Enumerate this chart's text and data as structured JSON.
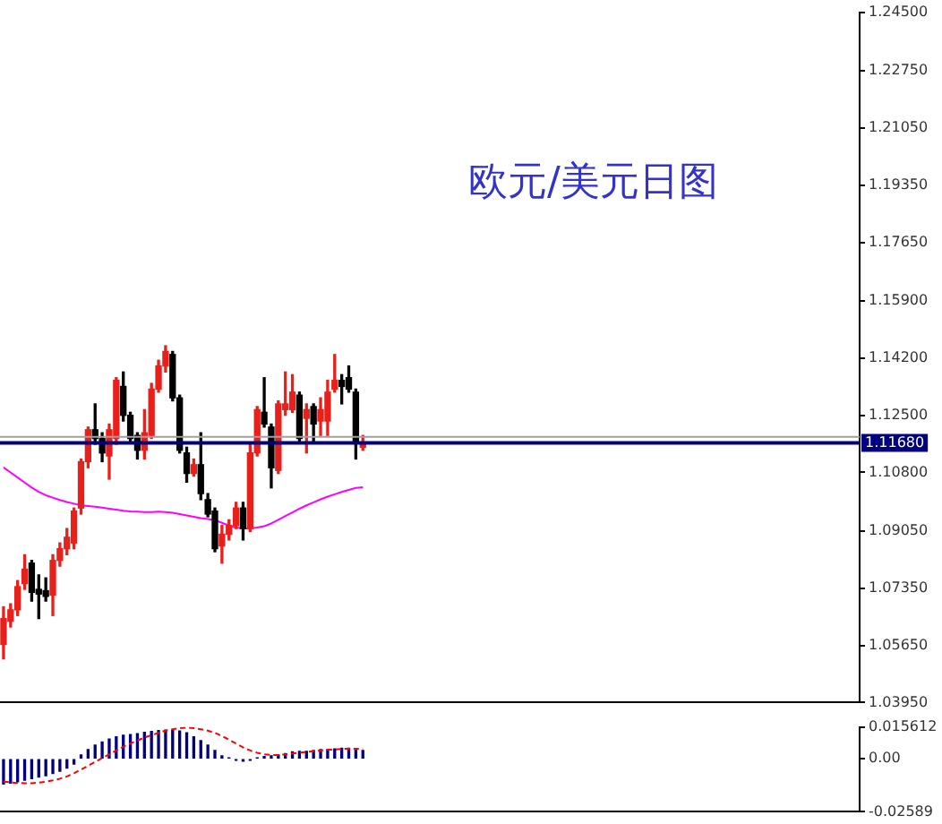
{
  "chart_data": [
    {
      "type": "candlestick",
      "title": "欧元/美元日图",
      "categories": [
        null,
        null,
        null,
        null,
        null,
        null,
        null,
        null,
        null,
        null,
        null,
        null,
        null,
        null,
        null,
        null,
        null,
        null,
        null,
        null,
        null,
        null,
        null,
        null,
        null,
        null,
        null,
        null,
        null,
        null,
        null,
        null,
        null,
        null,
        null,
        null,
        null,
        null,
        null,
        null,
        null,
        null,
        null,
        null,
        null,
        null,
        null,
        null,
        null,
        null,
        null,
        null,
        null,
        null,
        null,
        null,
        null,
        null,
        null,
        null,
        null,
        null,
        null,
        null,
        null,
        null,
        null,
        null,
        null,
        null,
        null,
        null,
        null,
        null,
        null,
        null,
        null,
        null,
        null,
        null,
        null,
        null,
        null,
        null,
        null,
        null,
        null,
        null,
        null,
        null,
        null,
        null,
        null,
        null,
        null,
        null,
        null,
        null,
        null,
        null,
        null,
        null,
        null,
        null,
        null,
        null,
        null,
        null,
        null,
        null,
        null,
        null,
        null,
        null,
        null,
        null,
        null,
        null,
        null,
        null,
        null,
        null
      ],
      "ohlc": [
        [
          1.0568,
          1.068,
          1.0525,
          1.0645
        ],
        [
          1.0637,
          1.0689,
          1.062,
          1.0671
        ],
        [
          1.0671,
          1.0758,
          1.0654,
          1.074
        ],
        [
          1.0749,
          1.0835,
          1.0732,
          1.0792
        ],
        [
          1.081,
          1.0818,
          1.0697,
          1.0723
        ],
        [
          1.0732,
          1.0775,
          1.0645,
          1.0718
        ],
        [
          1.0728,
          1.0766,
          1.0697,
          1.0711
        ],
        [
          1.0715,
          1.0835,
          1.0654,
          1.0818
        ],
        [
          1.0818,
          1.087,
          1.0801,
          1.0853
        ],
        [
          1.0853,
          1.0913,
          1.0835,
          1.0887
        ],
        [
          1.087,
          1.0974,
          1.0853,
          1.0965
        ],
        [
          1.0974,
          1.112,
          1.0956,
          1.1112
        ],
        [
          1.1112,
          1.1215,
          1.1094,
          1.1207
        ],
        [
          1.1207,
          1.1284,
          1.1164,
          1.1181
        ],
        [
          1.1181,
          1.1198,
          1.1112,
          1.1138
        ],
        [
          1.1129,
          1.1224,
          1.106,
          1.1207
        ],
        [
          1.1181,
          1.1362,
          1.1164,
          1.1354
        ],
        [
          1.1336,
          1.1379,
          1.1233,
          1.125
        ],
        [
          1.125,
          1.1259,
          1.1172,
          1.1181
        ],
        [
          1.119,
          1.1198,
          1.112,
          1.1146
        ],
        [
          1.1146,
          1.1267,
          1.112,
          1.1198
        ],
        [
          1.119,
          1.1345,
          1.1181,
          1.1328
        ],
        [
          1.1328,
          1.1414,
          1.1319,
          1.1397
        ],
        [
          1.1397,
          1.1457,
          1.1379,
          1.144
        ],
        [
          1.1431,
          1.144,
          1.1293,
          1.1302
        ],
        [
          1.1302,
          1.131,
          1.1138,
          1.1146
        ],
        [
          1.1138,
          1.1155,
          1.1051,
          1.1077
        ],
        [
          1.1077,
          1.112,
          1.1069,
          1.1103
        ],
        [
          1.1103,
          1.1198,
          1.0999,
          1.1017
        ],
        [
          1.0999,
          1.1017,
          1.0948,
          1.0956
        ],
        [
          1.0965,
          1.0974,
          1.0844,
          1.0853
        ],
        [
          1.0861,
          1.0922,
          1.081,
          1.0896
        ],
        [
          1.0896,
          1.0939,
          1.0879,
          1.0922
        ],
        [
          1.0922,
          1.0991,
          1.0913,
          1.0974
        ],
        [
          1.0974,
          1.0991,
          1.0879,
          1.0913
        ],
        [
          1.0913,
          1.1164,
          1.0904,
          1.1138
        ],
        [
          1.1138,
          1.1276,
          1.1129,
          1.1267
        ],
        [
          1.1259,
          1.1362,
          1.1215,
          1.1224
        ],
        [
          1.1215,
          1.1224,
          1.1034,
          1.1094
        ],
        [
          1.1086,
          1.1293,
          1.1077,
          1.1284
        ],
        [
          1.1267,
          1.1379,
          1.125,
          1.1284
        ],
        [
          1.1267,
          1.1371,
          1.1259,
          1.1319
        ],
        [
          1.131,
          1.1319,
          1.1172,
          1.1181
        ],
        [
          1.1241,
          1.1284,
          1.1138,
          1.1267
        ],
        [
          1.1276,
          1.1284,
          1.1172,
          1.1224
        ],
        [
          1.1233,
          1.1302,
          1.119,
          1.1267
        ],
        [
          1.1233,
          1.1354,
          1.119,
          1.1319
        ],
        [
          1.1328,
          1.1431,
          1.1319,
          1.1354
        ],
        [
          1.1354,
          1.1371,
          1.1284,
          1.1336
        ],
        [
          1.1362,
          1.1397,
          1.1319,
          1.1328
        ],
        [
          1.1319,
          1.1328,
          1.112,
          1.1172
        ],
        [
          1.1155,
          1.119,
          1.1146,
          1.1168
        ],
        null,
        null,
        null,
        null,
        null,
        null,
        null,
        null,
        null,
        null,
        null,
        null,
        null,
        null,
        null,
        null,
        null,
        null,
        null,
        null,
        null,
        null,
        null,
        null,
        null,
        null,
        null,
        null,
        null,
        null,
        null,
        null,
        null,
        null,
        null,
        null,
        null,
        null,
        null,
        null,
        null,
        null,
        null,
        null,
        null,
        null,
        null,
        null,
        null,
        null,
        null,
        null,
        null,
        null,
        null,
        null,
        null,
        null,
        null,
        null,
        null,
        null,
        null,
        null,
        null,
        null,
        null,
        null,
        null,
        null
      ],
      "colors": [
        "#e8201c",
        "#e8201c",
        "#e8201c",
        "#e8201c",
        "#000000",
        "#000000",
        "#000000",
        "#e8201c",
        "#e8201c",
        "#e8201c",
        "#e8201c",
        "#e8201c",
        "#e8201c",
        "#000000",
        "#000000",
        "#e8201c",
        "#e8201c",
        "#000000",
        "#000000",
        "#000000",
        "#e8201c",
        "#e8201c",
        "#e8201c",
        "#e8201c",
        "#000000",
        "#000000",
        "#000000",
        "#e8201c",
        "#000000",
        "#000000",
        "#000000",
        "#e8201c",
        "#e8201c",
        "#e8201c",
        "#000000",
        "#e8201c",
        "#e8201c",
        "#000000",
        "#000000",
        "#e8201c",
        "#e8201c",
        "#e8201c",
        "#000000",
        "#e8201c",
        "#000000",
        "#e8201c",
        "#e8201c",
        "#e8201c",
        "#000000",
        "#000000",
        "#000000",
        "#e8201c",
        null,
        null,
        null,
        null,
        null,
        null,
        null,
        null,
        null,
        null,
        null,
        null,
        null,
        null,
        null,
        null,
        null,
        null,
        null,
        null,
        null,
        null,
        null,
        null,
        null,
        null,
        null,
        null,
        null,
        null,
        null,
        null,
        null,
        null,
        null,
        null,
        null,
        null,
        null,
        null,
        null,
        null,
        null,
        null,
        null,
        null,
        null,
        null,
        null,
        null,
        null,
        null,
        null,
        null,
        null,
        null,
        null,
        null,
        null,
        null,
        null,
        null,
        null,
        null,
        null,
        null,
        null,
        null,
        null,
        null
      ],
      "series": [
        {
          "type": "line",
          "color": "#ff00ff",
          "values": [
            1.1095,
            1.108,
            1.1065,
            1.105,
            1.1035,
            1.1022,
            1.1012,
            1.1005,
            1.0998,
            1.0992,
            1.0987,
            1.0982,
            1.098,
            1.0978,
            1.0975,
            1.0972,
            1.0969,
            1.0966,
            1.0964,
            1.0963,
            1.0962,
            1.0962,
            1.0963,
            1.0962,
            1.096,
            1.0956,
            1.0952,
            1.0948,
            1.0944,
            1.0941,
            1.0938,
            1.093,
            1.0922,
            1.0916,
            1.0913,
            1.0913,
            1.0916,
            1.092,
            1.0928,
            1.0939,
            1.095,
            1.0961,
            1.0972,
            1.0982,
            1.0991,
            1.1,
            1.1008,
            1.1015,
            1.1022,
            1.1028,
            1.1034,
            1.1036,
            null,
            null,
            null,
            null,
            null,
            null,
            null,
            null,
            null,
            null,
            null,
            null,
            null,
            null,
            null,
            null,
            null,
            null,
            null,
            null,
            null,
            null,
            null,
            null,
            null,
            null,
            null,
            null,
            null,
            null,
            null,
            null,
            null,
            null,
            null,
            null,
            null,
            null,
            null,
            null,
            null,
            null,
            null,
            null,
            null,
            null,
            null,
            null,
            null,
            null,
            null,
            null,
            null,
            null,
            null,
            null,
            null,
            null,
            null,
            null,
            null,
            null,
            null,
            null,
            null,
            null,
            null,
            null,
            null,
            null
          ]
        }
      ],
      "ylim": [
        1.0395,
        1.245
      ],
      "yticks": [
        {
          "value": 1.0395,
          "label": "1.03950"
        },
        {
          "value": 1.0565,
          "label": "1.05650"
        },
        {
          "value": 1.0735,
          "label": "1.07350"
        },
        {
          "value": 1.0905,
          "label": "1.09050"
        },
        {
          "value": 1.108,
          "label": "1.10800"
        },
        {
          "value": 1.125,
          "label": "1.12500"
        },
        {
          "value": 1.142,
          "label": "1.14200"
        },
        {
          "value": 1.159,
          "label": "1.15900"
        },
        {
          "value": 1.1765,
          "label": "1.17650"
        },
        {
          "value": 1.1935,
          "label": "1.19350"
        },
        {
          "value": 1.2105,
          "label": "1.21050"
        },
        {
          "value": 1.2275,
          "label": "1.22750"
        },
        {
          "value": 1.245,
          "label": "1.24500"
        }
      ],
      "ref_lines": [
        {
          "axis": "y",
          "value": 1.11858,
          "color": "#a0a0a0"
        },
        {
          "axis": "y",
          "value": 1.1168,
          "label": "1.11680",
          "color": "#000080"
        }
      ],
      "marker": "none",
      "tick_labels": "y"
    },
    {
      "type": "bar",
      "categories": [
        null,
        null,
        null,
        null,
        null,
        null,
        null,
        null,
        null,
        null,
        null,
        null,
        null,
        null,
        null,
        null,
        null,
        null,
        null,
        null,
        null,
        null,
        null,
        null,
        null,
        null,
        null,
        null,
        null,
        null,
        null,
        null,
        null,
        null,
        null,
        null,
        null,
        null,
        null,
        null,
        null,
        null,
        null,
        null,
        null,
        null,
        null,
        null,
        null,
        null,
        null,
        null,
        null,
        null,
        null,
        null,
        null,
        null,
        null,
        null,
        null,
        null,
        null,
        null,
        null,
        null,
        null,
        null,
        null,
        null,
        null,
        null,
        null,
        null,
        null,
        null,
        null,
        null,
        null,
        null,
        null,
        null,
        null,
        null,
        null,
        null,
        null,
        null,
        null,
        null,
        null,
        null,
        null,
        null,
        null,
        null,
        null,
        null,
        null,
        null,
        null,
        null,
        null,
        null,
        null,
        null,
        null,
        null,
        null,
        null,
        null,
        null,
        null,
        null,
        null,
        null,
        null,
        null,
        null,
        null,
        null,
        null
      ],
      "series": [
        {
          "type": "bar",
          "color": "#000080",
          "values": [
            -0.0123,
            -0.0119,
            -0.0112,
            -0.0104,
            -0.0097,
            -0.0089,
            -0.0082,
            -0.0071,
            -0.006,
            -0.0045,
            -0.0026,
            0.0019,
            0.0045,
            0.0067,
            0.0082,
            0.0097,
            0.0108,
            0.0115,
            0.0119,
            0.0123,
            0.013,
            0.0134,
            0.0138,
            0.014,
            0.014,
            0.0136,
            0.0127,
            0.0108,
            0.0089,
            0.0067,
            0.0041,
            0.0015,
            0.0004,
            -0.0007,
            -0.0011,
            -0.0007,
            0.0004,
            0.0011,
            0.0015,
            0.0019,
            0.0026,
            0.0034,
            0.0037,
            0.0037,
            0.0041,
            0.0045,
            0.0045,
            0.0049,
            0.0052,
            0.0052,
            0.0049,
            0.0041,
            null,
            null,
            null,
            null,
            null,
            null,
            null,
            null,
            null,
            null,
            null,
            null,
            null,
            null,
            null,
            null,
            null,
            null,
            null,
            null,
            null,
            null,
            null,
            null,
            null,
            null,
            null,
            null,
            null,
            null,
            null,
            null,
            null,
            null,
            null,
            null,
            null,
            null,
            null,
            null,
            null,
            null,
            null,
            null,
            null,
            null,
            null,
            null,
            null,
            null,
            null,
            null,
            null,
            null,
            null,
            null,
            null,
            null,
            null,
            null,
            null,
            null,
            null,
            null,
            null,
            null,
            null,
            null,
            null,
            null
          ]
        },
        {
          "type": "line",
          "color": "#ff0000",
          "line_style": "dashed",
          "values": [
            -0.0112,
            -0.0115,
            -0.0118,
            -0.0119,
            -0.0119,
            -0.0116,
            -0.0112,
            -0.0105,
            -0.0097,
            -0.0086,
            -0.0071,
            -0.0052,
            -0.0034,
            -0.0015,
            0.0004,
            0.0022,
            0.0041,
            0.006,
            0.0075,
            0.009,
            0.0104,
            0.0116,
            0.0127,
            0.0138,
            0.0145,
            0.015,
            0.0153,
            0.015,
            0.0145,
            0.0138,
            0.0127,
            0.0112,
            0.0093,
            0.0075,
            0.0056,
            0.0041,
            0.003,
            0.0022,
            0.0019,
            0.0019,
            0.0022,
            0.0026,
            0.003,
            0.0034,
            0.0037,
            0.0041,
            0.0045,
            0.0045,
            0.0049,
            0.0049,
            0.0049,
            0.0049,
            null,
            null,
            null,
            null,
            null,
            null,
            null,
            null,
            null,
            null,
            null,
            null,
            null,
            null,
            null,
            null,
            null,
            null,
            null,
            null,
            null,
            null,
            null,
            null,
            null,
            null,
            null,
            null,
            null,
            null,
            null,
            null,
            null,
            null,
            null,
            null,
            null,
            null,
            null,
            null,
            null,
            null,
            null,
            null,
            null,
            null,
            null,
            null,
            null,
            null,
            null,
            null,
            null,
            null,
            null,
            null,
            null,
            null,
            null,
            null,
            null,
            null,
            null,
            null,
            null,
            null,
            null,
            null,
            null,
            null
          ]
        }
      ],
      "ylim": [
        -0.02589,
        0.015612
      ],
      "yticks": [
        {
          "value": -0.02589,
          "label": "-0.02589"
        },
        {
          "value": 0,
          "label": "0.00"
        },
        0.015612
      ],
      "marker": "none",
      "tick_labels": "y"
    }
  ]
}
